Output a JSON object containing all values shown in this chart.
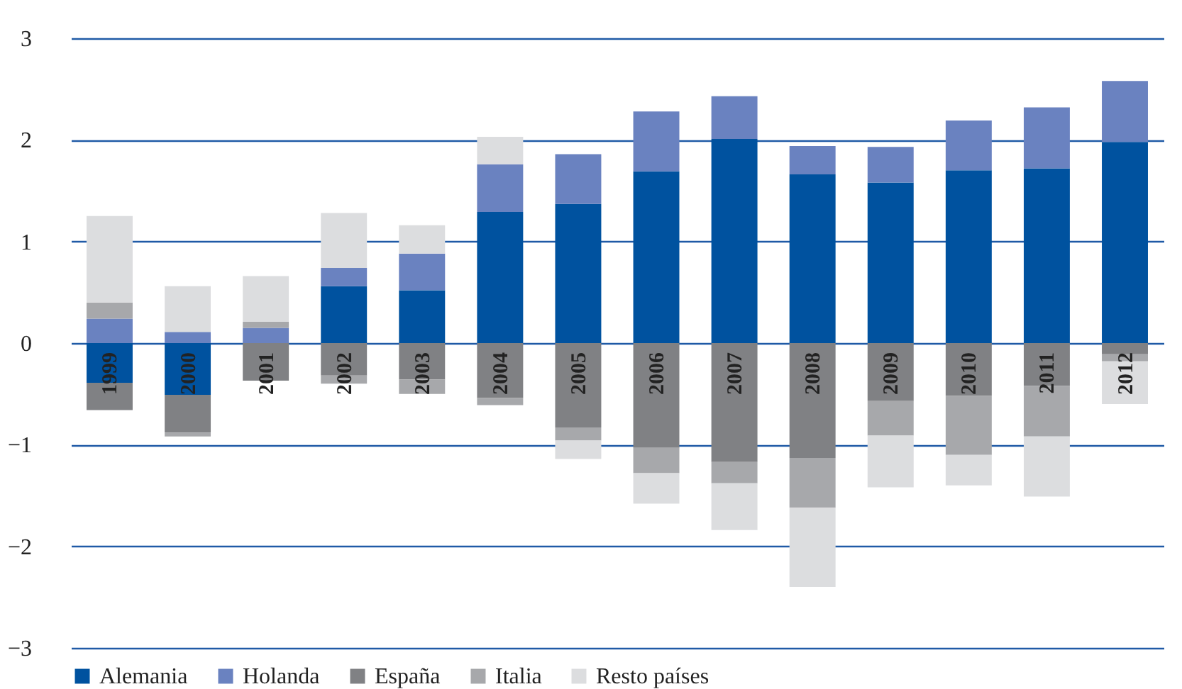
{
  "chart_data": {
    "type": "bar",
    "stacked": true,
    "categories": [
      "1999",
      "2000",
      "2001",
      "2002",
      "2003",
      "2004",
      "2005",
      "2006",
      "2007",
      "2008",
      "2009",
      "2010",
      "2011",
      "2012"
    ],
    "series": [
      {
        "name": "Alemania",
        "color": "#00529f",
        "values": [
          -0.39,
          -0.51,
          0,
          0.56,
          0.52,
          1.29,
          1.37,
          1.69,
          2.01,
          1.66,
          1.58,
          1.7,
          1.72,
          1.98
        ]
      },
      {
        "name": "Holanda",
        "color": "#6a82c0",
        "values": [
          0.24,
          0.11,
          0.15,
          0.18,
          0.36,
          0.47,
          0.49,
          0.59,
          0.42,
          0.28,
          0.35,
          0.49,
          0.6,
          0.6
        ]
      },
      {
        "name": "España",
        "color": "#808184",
        "values": [
          -0.27,
          -0.37,
          -0.37,
          -0.32,
          -0.36,
          -0.54,
          -0.83,
          -1.03,
          -1.17,
          -1.13,
          -0.57,
          -0.52,
          -0.42,
          -0.11
        ]
      },
      {
        "name": "Italia",
        "color": "#a7a8ab",
        "values": [
          0.16,
          -0.04,
          0.06,
          -0.08,
          -0.14,
          -0.07,
          -0.13,
          -0.25,
          -0.21,
          -0.49,
          -0.34,
          -0.58,
          -0.5,
          -0.07
        ]
      },
      {
        "name": "Resto países",
        "color": "#dcdddf",
        "values": [
          0.85,
          0.45,
          0.45,
          0.54,
          0.28,
          0.27,
          -0.18,
          -0.3,
          -0.46,
          -0.78,
          -0.51,
          -0.3,
          -0.59,
          -0.42
        ]
      }
    ],
    "ylim": [
      -3,
      3
    ],
    "yticks": [
      -3,
      -2,
      -1,
      0,
      1,
      2,
      3
    ],
    "grid": "y",
    "legend": "bottom"
  }
}
